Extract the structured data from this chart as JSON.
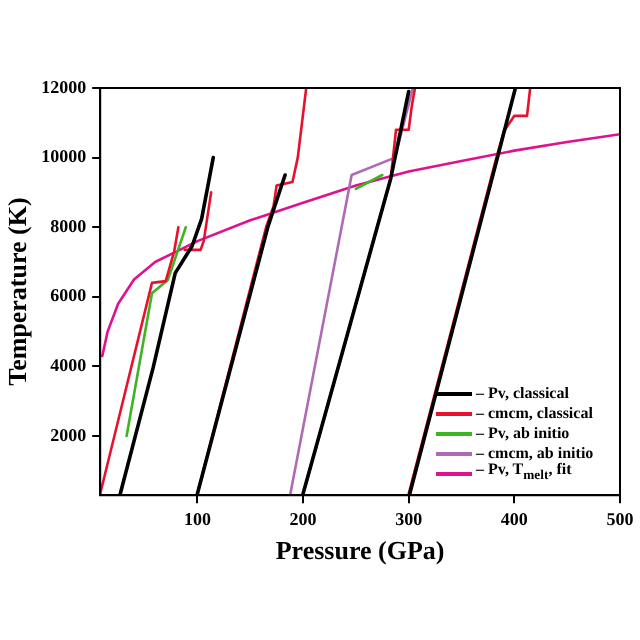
{
  "chart_data": {
    "type": "line",
    "xlabel": "Pressure (GPa)",
    "ylabel": "Temperature (K)",
    "xlim": [
      8,
      500
    ],
    "xticks": [
      100,
      200,
      300,
      400,
      500
    ],
    "ylim": [
      300,
      12000
    ],
    "yticks": [
      2000,
      4000,
      6000,
      8000,
      10000,
      12000
    ],
    "grid": false,
    "legend": "bottom right",
    "marker": "none",
    "line_style": "solid",
    "series": [
      {
        "name": "– Pv, classical",
        "color": "#000000",
        "x": [
          27,
          58,
          79,
          95,
          104,
          115,
          null,
          100,
          167,
          183,
          null,
          200,
          283,
          300,
          null,
          301,
          384,
          401
        ],
        "values": [
          340,
          3950,
          6680,
          7460,
          8240,
          10000,
          null,
          340,
          8040,
          9500,
          null,
          340,
          9400,
          11900,
          null,
          340,
          10000,
          12000
        ]
      },
      {
        "name": "– cmcm, classical",
        "color": "#e8112d",
        "x": [
          8,
          57,
          70,
          78,
          82,
          null,
          88,
          103,
          106,
          113,
          null,
          100,
          165,
          172,
          175,
          190,
          195,
          203,
          null,
          200,
          283,
          288,
          300,
          303,
          306,
          null,
          300,
          383,
          390,
          400,
          412,
          415
        ],
        "values": [
          340,
          6400,
          6450,
          7300,
          8000,
          null,
          7350,
          7350,
          7600,
          9000,
          null,
          340,
          8000,
          8600,
          9200,
          9300,
          10000,
          12000,
          null,
          340,
          9400,
          10800,
          10800,
          11500,
          12000,
          null,
          340,
          10000,
          10750,
          11200,
          11200,
          12000
        ]
      },
      {
        "name": "– Pv, ab initio",
        "color": "#3cb521",
        "x": [
          33,
          57,
          72,
          89,
          null,
          250,
          275
        ],
        "values": [
          2000,
          6100,
          6480,
          8000,
          null,
          9100,
          9500
        ]
      },
      {
        "name": "– cmcm, ab initio",
        "color": "#b06ab3",
        "x": [
          188,
          246,
          287,
          304
        ],
        "values": [
          340,
          9500,
          10000,
          12000
        ]
      },
      {
        "name": "– Pv, T$_{melt}$, fit",
        "color": "#e0118e",
        "x": [
          10,
          15,
          25,
          40,
          60,
          80,
          100,
          150,
          200,
          250,
          300,
          350,
          400,
          450,
          500
        ],
        "values": [
          4300,
          5000,
          5800,
          6500,
          7000,
          7300,
          7600,
          8200,
          8700,
          9200,
          9600,
          9900,
          10200,
          10450,
          10670
        ]
      }
    ]
  }
}
